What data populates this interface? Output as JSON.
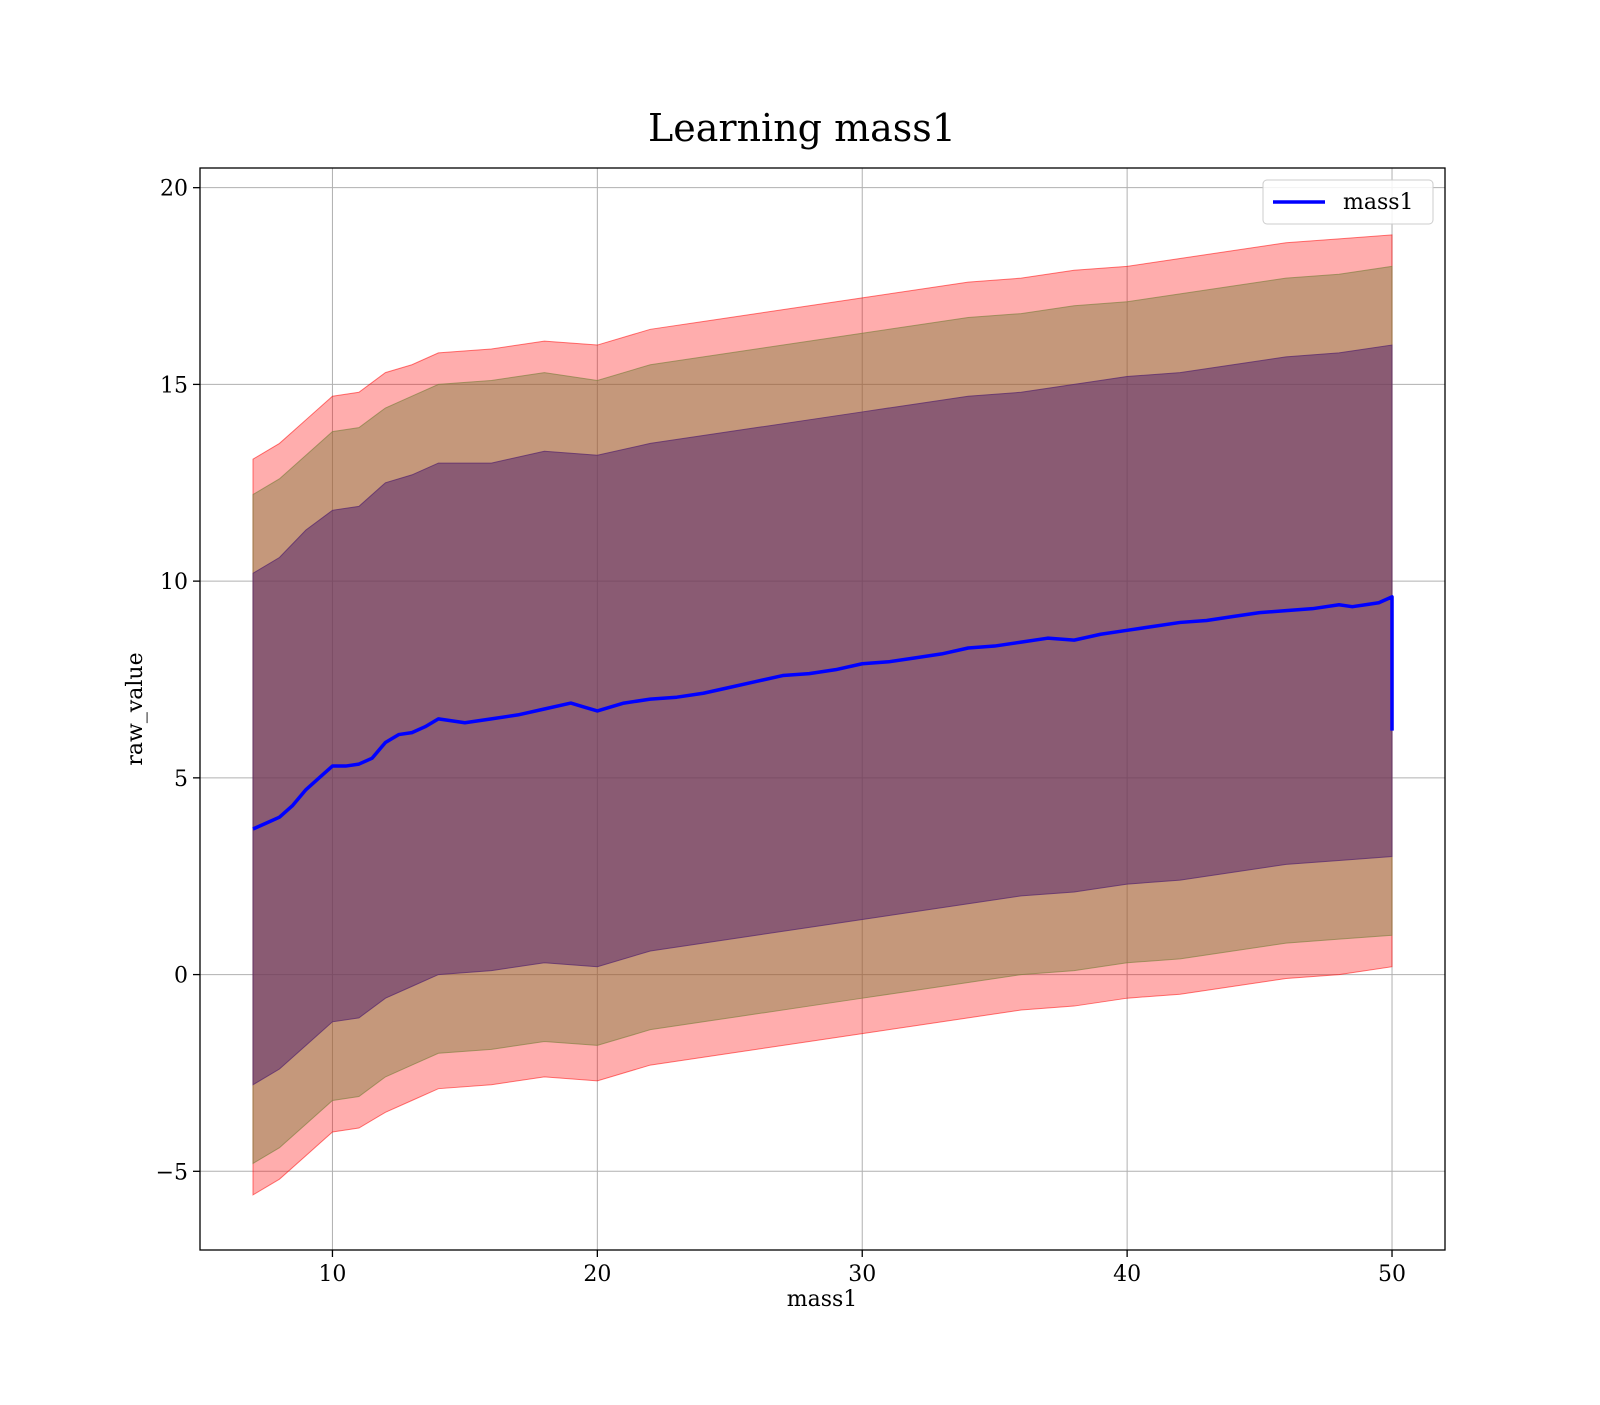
{
  "chart_data": {
    "type": "line",
    "title": "Learning mass1",
    "xlabel": "mass1",
    "ylabel": "raw_value",
    "xlim": [
      5,
      52
    ],
    "ylim": [
      -7,
      20.5
    ],
    "xticks": [
      10,
      20,
      30,
      40,
      50
    ],
    "yticks": [
      -5,
      0,
      5,
      10,
      15,
      20
    ],
    "xtick_labels": [
      "10",
      "20",
      "30",
      "40",
      "50"
    ],
    "ytick_labels": [
      "−5",
      "0",
      "5",
      "10",
      "15",
      "20"
    ],
    "grid": true,
    "legend": {
      "location": "upper right",
      "entries": [
        "mass1"
      ]
    },
    "series": [
      {
        "name": "mass1",
        "kind": "line",
        "color": "#0000ff",
        "x": [
          7.0,
          7.5,
          8.0,
          8.5,
          9.0,
          9.5,
          10.0,
          10.5,
          11.0,
          11.5,
          12.0,
          12.5,
          13.0,
          13.5,
          14.0,
          15.0,
          16.0,
          17.0,
          18.0,
          19.0,
          19.5,
          20.0,
          21.0,
          22.0,
          23.0,
          24.0,
          25.0,
          26.0,
          27.0,
          28.0,
          29.0,
          30.0,
          31.0,
          32.0,
          33.0,
          34.0,
          35.0,
          36.0,
          37.0,
          38.0,
          39.0,
          40.0,
          41.0,
          42.0,
          43.0,
          44.0,
          45.0,
          46.0,
          47.0,
          48.0,
          48.5,
          49.0,
          49.5,
          50.0,
          50.0
        ],
        "y": [
          3.7,
          3.85,
          4.0,
          4.3,
          4.7,
          5.0,
          5.3,
          5.3,
          5.35,
          5.5,
          5.9,
          6.1,
          6.15,
          6.3,
          6.5,
          6.4,
          6.5,
          6.6,
          6.75,
          6.9,
          6.8,
          6.7,
          6.9,
          7.0,
          7.05,
          7.15,
          7.3,
          7.45,
          7.6,
          7.65,
          7.75,
          7.9,
          7.95,
          8.05,
          8.15,
          8.3,
          8.35,
          8.45,
          8.55,
          8.5,
          8.65,
          8.75,
          8.85,
          8.95,
          9.0,
          9.1,
          9.2,
          9.25,
          9.3,
          9.4,
          9.35,
          9.4,
          9.45,
          9.6,
          6.2
        ]
      },
      {
        "name": "",
        "kind": "band",
        "color": "#ff0000",
        "opacity": 0.32,
        "x": [
          7.0,
          8.0,
          9.0,
          10.0,
          11.0,
          12.0,
          13.0,
          14.0,
          16.0,
          18.0,
          20.0,
          22.0,
          24.0,
          26.0,
          28.0,
          30.0,
          32.0,
          34.0,
          36.0,
          38.0,
          40.0,
          42.0,
          44.0,
          46.0,
          48.0,
          50.0
        ],
        "upper": [
          13.1,
          13.5,
          14.1,
          14.7,
          14.8,
          15.3,
          15.5,
          15.8,
          15.9,
          16.1,
          16.0,
          16.4,
          16.6,
          16.8,
          17.0,
          17.2,
          17.4,
          17.6,
          17.7,
          17.9,
          18.0,
          18.2,
          18.4,
          18.6,
          18.7,
          18.8
        ],
        "lower": [
          -5.6,
          -5.2,
          -4.6,
          -4.0,
          -3.9,
          -3.5,
          -3.2,
          -2.9,
          -2.8,
          -2.6,
          -2.7,
          -2.3,
          -2.1,
          -1.9,
          -1.7,
          -1.5,
          -1.3,
          -1.1,
          -0.9,
          -0.8,
          -0.6,
          -0.5,
          -0.3,
          -0.1,
          0.0,
          0.2
        ]
      },
      {
        "name": "",
        "kind": "band",
        "color": "#7f7f3f",
        "opacity": 0.45,
        "x": [
          7.0,
          8.0,
          9.0,
          10.0,
          11.0,
          12.0,
          13.0,
          14.0,
          16.0,
          18.0,
          20.0,
          22.0,
          24.0,
          26.0,
          28.0,
          30.0,
          32.0,
          34.0,
          36.0,
          38.0,
          40.0,
          42.0,
          44.0,
          46.0,
          48.0,
          50.0
        ],
        "upper": [
          12.2,
          12.6,
          13.2,
          13.8,
          13.9,
          14.4,
          14.7,
          15.0,
          15.1,
          15.3,
          15.1,
          15.5,
          15.7,
          15.9,
          16.1,
          16.3,
          16.5,
          16.7,
          16.8,
          17.0,
          17.1,
          17.3,
          17.5,
          17.7,
          17.8,
          18.0
        ],
        "lower": [
          -4.8,
          -4.4,
          -3.8,
          -3.2,
          -3.1,
          -2.6,
          -2.3,
          -2.0,
          -1.9,
          -1.7,
          -1.8,
          -1.4,
          -1.2,
          -1.0,
          -0.8,
          -0.6,
          -0.4,
          -0.2,
          0.0,
          0.1,
          0.3,
          0.4,
          0.6,
          0.8,
          0.9,
          1.0
        ]
      },
      {
        "name": "",
        "kind": "band",
        "color": "#5a2a6e",
        "opacity": 0.55,
        "x": [
          7.0,
          8.0,
          9.0,
          10.0,
          11.0,
          12.0,
          13.0,
          14.0,
          16.0,
          18.0,
          20.0,
          22.0,
          24.0,
          26.0,
          28.0,
          30.0,
          32.0,
          34.0,
          36.0,
          38.0,
          40.0,
          42.0,
          44.0,
          46.0,
          48.0,
          50.0
        ],
        "upper": [
          10.2,
          10.6,
          11.3,
          11.8,
          11.9,
          12.5,
          12.7,
          13.0,
          13.0,
          13.3,
          13.2,
          13.5,
          13.7,
          13.9,
          14.1,
          14.3,
          14.5,
          14.7,
          14.8,
          15.0,
          15.2,
          15.3,
          15.5,
          15.7,
          15.8,
          16.0
        ],
        "lower": [
          -2.8,
          -2.4,
          -1.8,
          -1.2,
          -1.1,
          -0.6,
          -0.3,
          0.0,
          0.1,
          0.3,
          0.2,
          0.6,
          0.8,
          1.0,
          1.2,
          1.4,
          1.6,
          1.8,
          2.0,
          2.1,
          2.3,
          2.4,
          2.6,
          2.8,
          2.9,
          3.0
        ]
      }
    ]
  }
}
